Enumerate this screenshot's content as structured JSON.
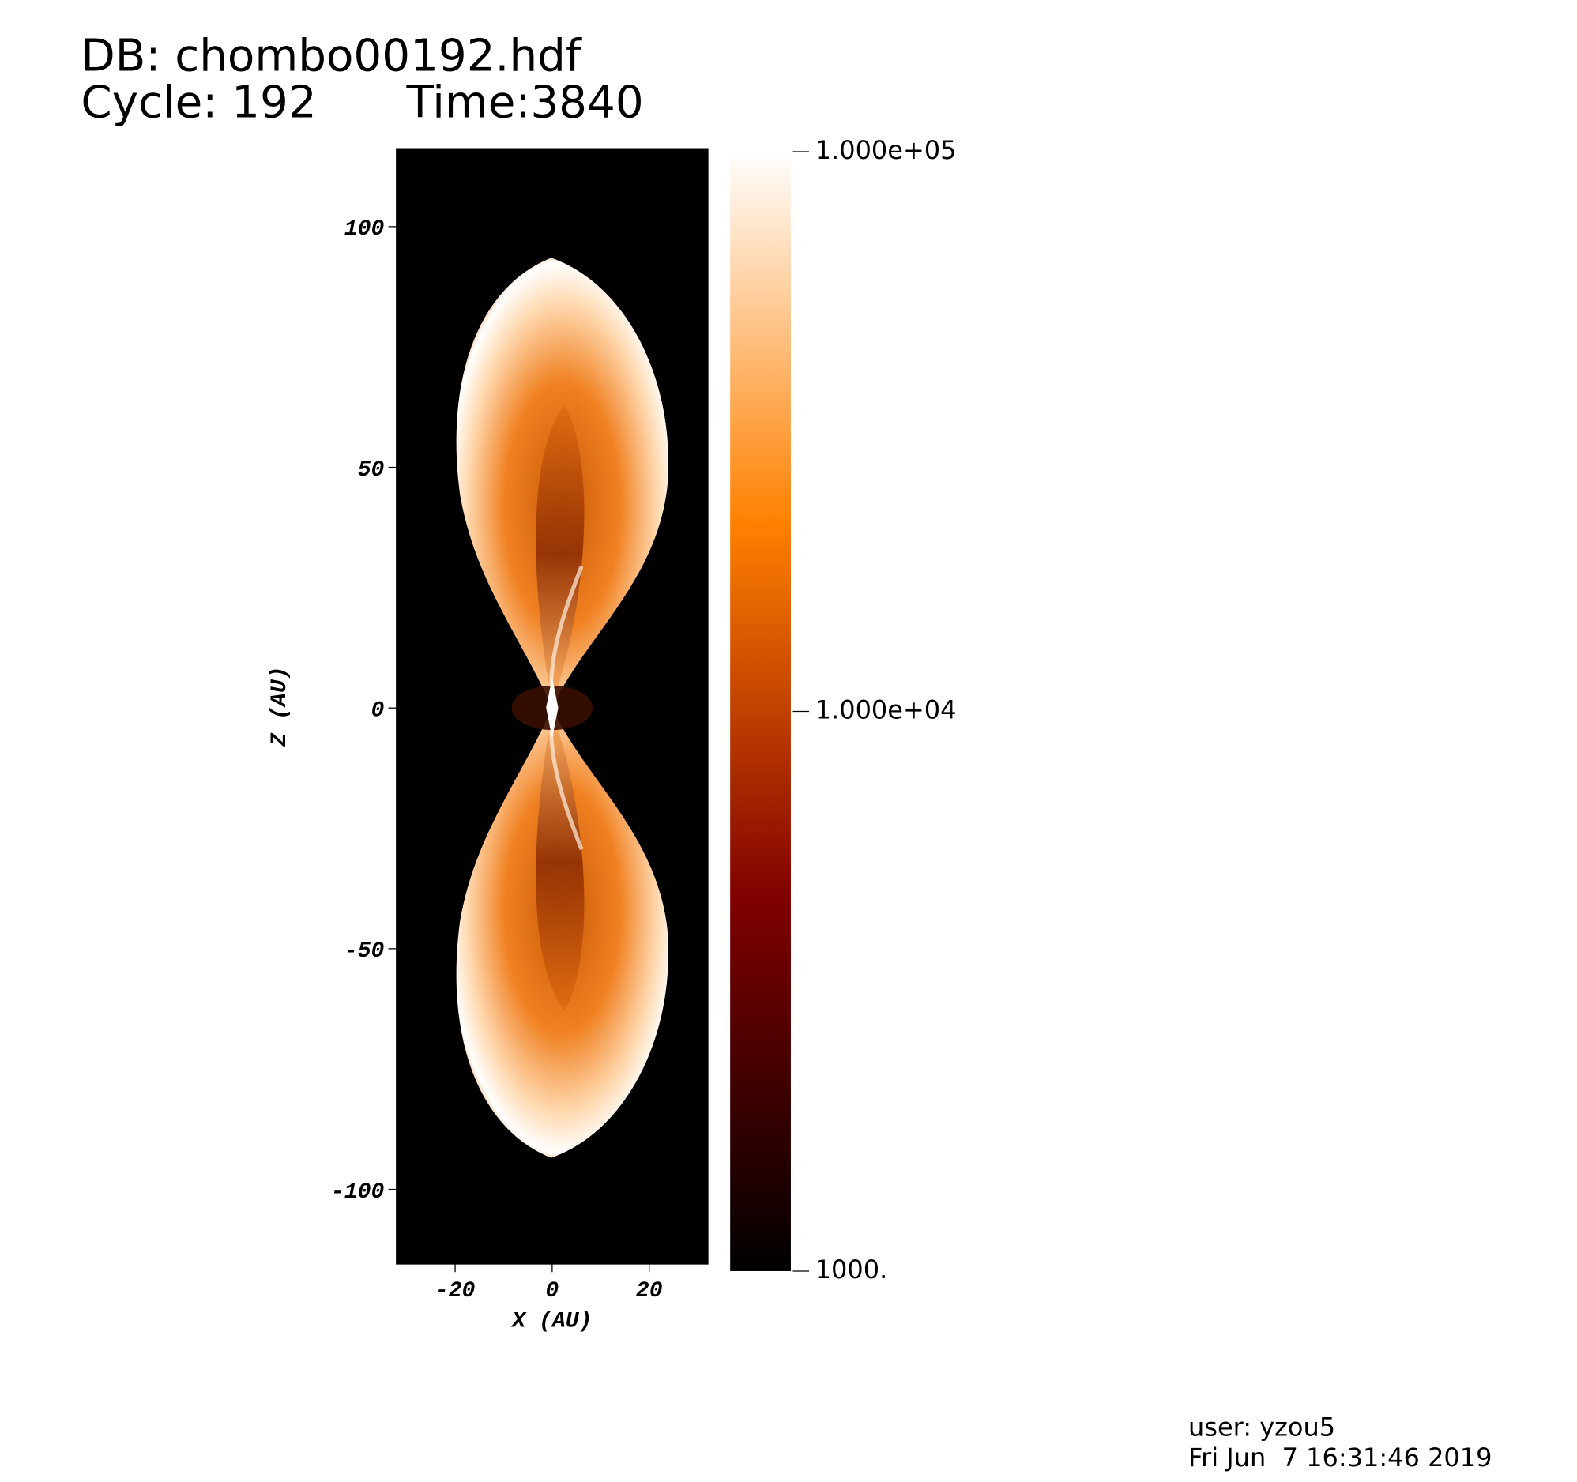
{
  "header": {
    "database": "DB: chombo00192.hdf",
    "cycle": "Cycle: 192",
    "time": "Time:3840"
  },
  "chart_data": {
    "type": "pseudocolor",
    "xlabel": "X (AU)",
    "ylabel": "Z (AU)",
    "xlim": [
      -32.1,
      32.1
    ],
    "ylim": [
      -115.5,
      116.2
    ],
    "xticks": [
      -20,
      0,
      20
    ],
    "yticks": [
      -100,
      -50,
      0,
      50,
      100
    ],
    "colorbar": {
      "scale": "log",
      "lim": [
        1000,
        100000
      ],
      "ticks": [
        {
          "value": 100000,
          "label": "1.000e+05"
        },
        {
          "value": 10000,
          "label": "1.000e+04"
        },
        {
          "value": 1000,
          "label": "1000."
        }
      ],
      "colors": [
        "#000000",
        "#800000",
        "#ff8000",
        "#ffffff"
      ]
    }
  },
  "footer": {
    "user": "user: yzou5",
    "date": "Fri Jun  7 16:31:46 2019"
  }
}
